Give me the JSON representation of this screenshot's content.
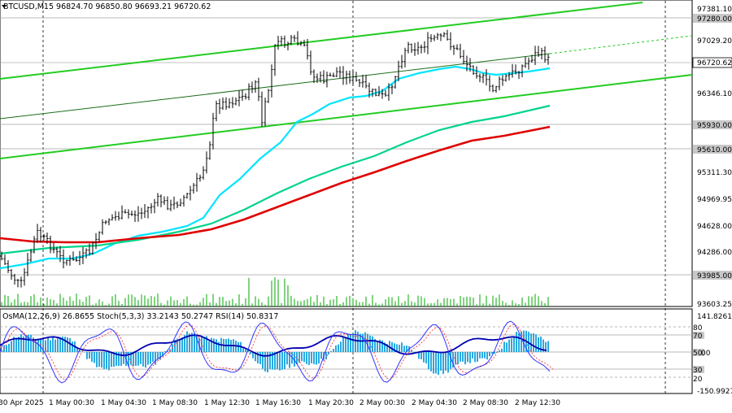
{
  "header": {
    "symbol_line": "BTCUSD,M15  96824.70 96850.80 96693.21 96720.62"
  },
  "price_axis": {
    "labels": [
      "97381.10",
      "97029.20",
      "96346.10",
      "95311.30",
      "94969.95",
      "94628.00",
      "94286.00",
      "93603.25"
    ],
    "levels": [
      "97280.00",
      "95930.00",
      "95610.00",
      "93985.00"
    ],
    "current": "96720.62"
  },
  "indicator_panel": {
    "header": "OsMA(12,26,9) 26.8655  Stoch(5,3,3) 33.2143 50.2747  RSI(14) 50.8317",
    "axis_top": "141.8261",
    "axis_bottom": "-150.9927",
    "levels": [
      "80",
      "70",
      "50",
      "00",
      "30",
      "20"
    ]
  },
  "time_axis": {
    "labels": [
      "30 Apr 2025",
      "1 May 00:30",
      "1 May 04:30",
      "1 May 08:30",
      "1 May 12:30",
      "1 May 16:30",
      "1 May 20:30",
      "2 May 00:30",
      "2 May 04:30",
      "2 May 08:30",
      "2 May 12:30"
    ]
  },
  "colors": {
    "candle": "#000000",
    "ma_fast": "#00e5ff",
    "ma_mid": "#00d48a",
    "ma_slow": "#e00000",
    "channel": "#22cc22",
    "histogram": "#29a9e0",
    "rsi": "#0000b0",
    "stoch_main": "#3333ff",
    "stoch_signal": "#ff3333",
    "level_line": "#a0a0a0"
  }
}
